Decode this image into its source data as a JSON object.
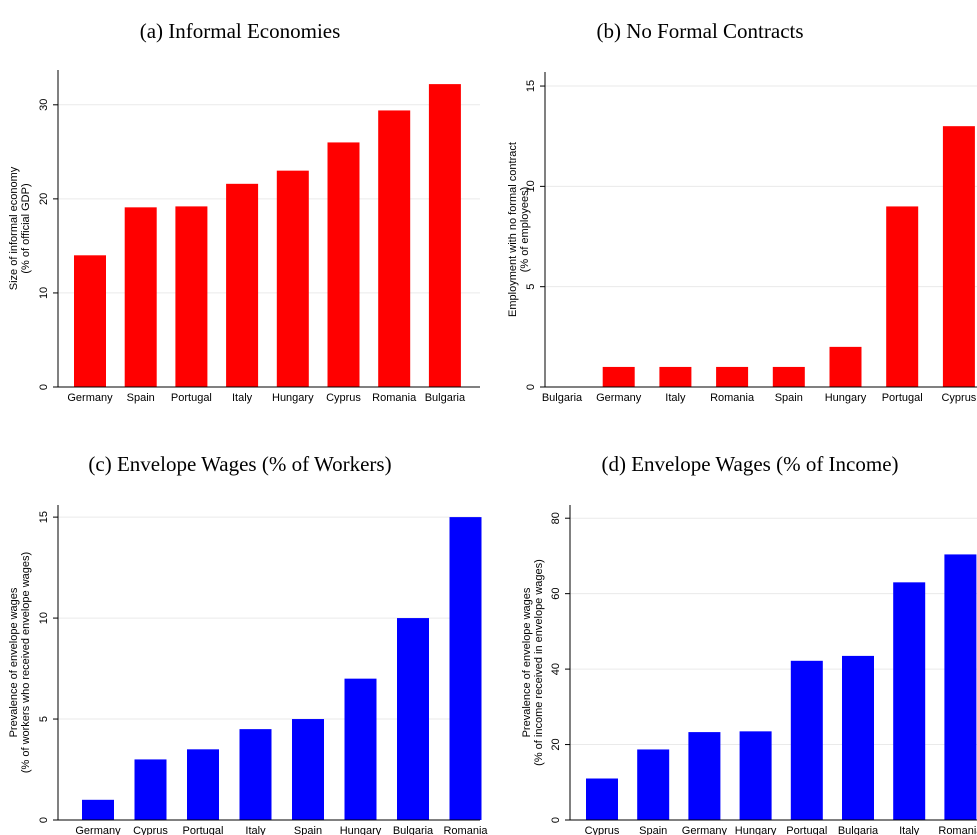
{
  "chart_data": [
    {
      "type": "bar",
      "title": "(a) Informal Economies",
      "ylabel": [
        "Size of informal economy",
        "(% of official GDP)"
      ],
      "categories": [
        "Germany",
        "Spain",
        "Portugal",
        "Italy",
        "Hungary",
        "Cyprus",
        "Romania",
        "Bulgaria"
      ],
      "values": [
        14,
        19.1,
        19.2,
        21.6,
        23,
        26,
        29.4,
        32.2
      ],
      "color": "#ff0000",
      "ylim": [
        0,
        33.7
      ],
      "yticks": [
        0,
        10,
        20,
        30
      ],
      "grid": true
    },
    {
      "type": "bar",
      "title": "(b) No Formal Contracts",
      "ylabel": [
        "Employment with no formal contract",
        "(% of employees)"
      ],
      "categories": [
        "Bulgaria",
        "Germany",
        "Italy",
        "Romania",
        "Spain",
        "Hungary",
        "Portugal",
        "Cyprus"
      ],
      "values": [
        0,
        1,
        1,
        1,
        1,
        2,
        9,
        13
      ],
      "color": "#ff0000",
      "ylim": [
        0,
        15.7
      ],
      "yticks": [
        0,
        5,
        10,
        15
      ],
      "grid": true
    },
    {
      "type": "bar",
      "title": "(c) Envelope Wages (% of Workers)",
      "ylabel": [
        "Prevalence of envelope wages",
        "(% of workers who received envelope wages)"
      ],
      "categories": [
        "Germany",
        "Cyprus",
        "Portugal",
        "Italy",
        "Spain",
        "Hungary",
        "Bulgaria",
        "Romania"
      ],
      "values": [
        1,
        3,
        3.5,
        4.5,
        5,
        7,
        10,
        15
      ],
      "color": "#0000ff",
      "ylim": [
        0,
        15.6
      ],
      "yticks": [
        0,
        5,
        10,
        15
      ],
      "grid": true
    },
    {
      "type": "bar",
      "title": "(d) Envelope Wages (% of Income)",
      "ylabel": [
        "Prevalence of envelope wages",
        "(% of income received in envelope wages)"
      ],
      "categories": [
        "Cyprus",
        "Spain",
        "Germany",
        "Hungary",
        "Portugal",
        "Bulgaria",
        "Italy",
        "Romania"
      ],
      "values": [
        11,
        18.7,
        23.3,
        23.5,
        42.2,
        43.5,
        63,
        70.4
      ],
      "color": "#0000ff",
      "ylim": [
        0,
        83.5
      ],
      "yticks": [
        0,
        20,
        40,
        60,
        80
      ],
      "grid": true
    }
  ]
}
